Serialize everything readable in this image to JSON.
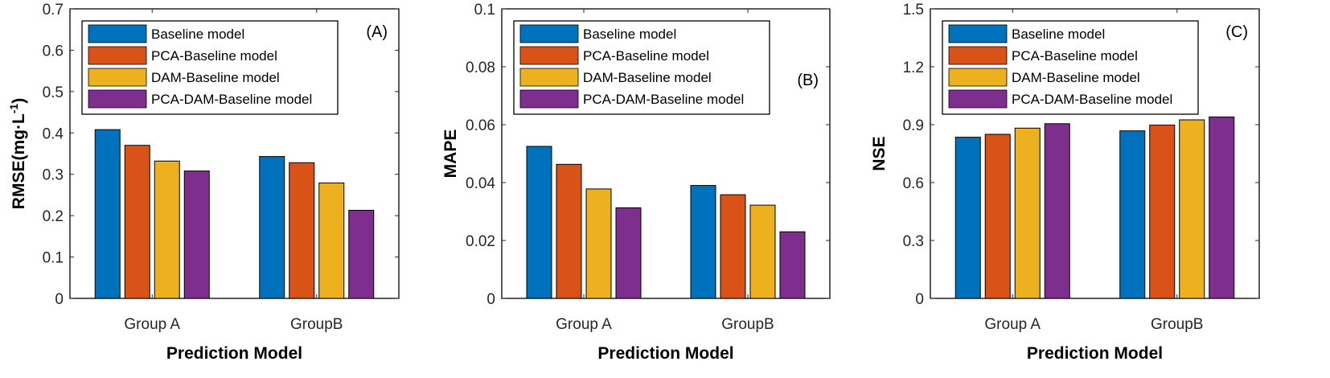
{
  "chart_data": [
    {
      "type": "bar",
      "panel_label": "(A)",
      "categories": [
        "Group A",
        "GroupB"
      ],
      "series": [
        {
          "name": "Baseline model",
          "values": [
            0.408,
            0.343
          ]
        },
        {
          "name": "PCA-Baseline model",
          "values": [
            0.37,
            0.328
          ]
        },
        {
          "name": "DAM-Baseline model",
          "values": [
            0.332,
            0.279
          ]
        },
        {
          "name": "PCA-DAM-Baseline model",
          "values": [
            0.308,
            0.213
          ]
        }
      ],
      "xlabel": "Prediction Model",
      "ylabel_main": "RMSE(mg·L",
      "ylabel_sup": "-1",
      "ylabel_end": ")",
      "ylim": [
        0,
        0.7
      ],
      "yticks": [
        "0",
        "0.1",
        "0.2",
        "0.3",
        "0.4",
        "0.5",
        "0.6",
        "0.7"
      ],
      "legend_position": "top-left",
      "label_position": "top-right"
    },
    {
      "type": "bar",
      "panel_label": "(B)",
      "categories": [
        "Group A",
        "GroupB"
      ],
      "series": [
        {
          "name": "Baseline model",
          "values": [
            0.0525,
            0.039
          ]
        },
        {
          "name": "PCA-Baseline model",
          "values": [
            0.0463,
            0.0358
          ]
        },
        {
          "name": "DAM-Baseline model",
          "values": [
            0.0378,
            0.0322
          ]
        },
        {
          "name": "PCA-DAM-Baseline model",
          "values": [
            0.0313,
            0.023
          ]
        }
      ],
      "xlabel": "Prediction Model",
      "ylabel_main": "MAPE",
      "ylabel_sup": "",
      "ylabel_end": "",
      "ylim": [
        0,
        0.1
      ],
      "yticks": [
        "0",
        "0.02",
        "0.04",
        "0.06",
        "0.08",
        "0.1"
      ],
      "legend_position": "top-left",
      "label_position": "right"
    },
    {
      "type": "bar",
      "panel_label": "(C)",
      "categories": [
        "Group A",
        "GroupB"
      ],
      "series": [
        {
          "name": "Baseline model",
          "values": [
            0.835,
            0.868
          ]
        },
        {
          "name": "PCA-Baseline model",
          "values": [
            0.85,
            0.898
          ]
        },
        {
          "name": "DAM-Baseline model",
          "values": [
            0.882,
            0.925
          ]
        },
        {
          "name": "PCA-DAM-Baseline model",
          "values": [
            0.905,
            0.94
          ]
        }
      ],
      "xlabel": "Prediction Model",
      "ylabel_main": "NSE",
      "ylabel_sup": "",
      "ylabel_end": "",
      "ylim": [
        0,
        1.5
      ],
      "yticks": [
        "0",
        "0.3",
        "0.6",
        "0.9",
        "1.2",
        "1.5"
      ],
      "legend_position": "top-left",
      "label_position": "top-right"
    }
  ],
  "colors": [
    "#0072BD",
    "#D95319",
    "#EDB120",
    "#7E2F8E"
  ]
}
